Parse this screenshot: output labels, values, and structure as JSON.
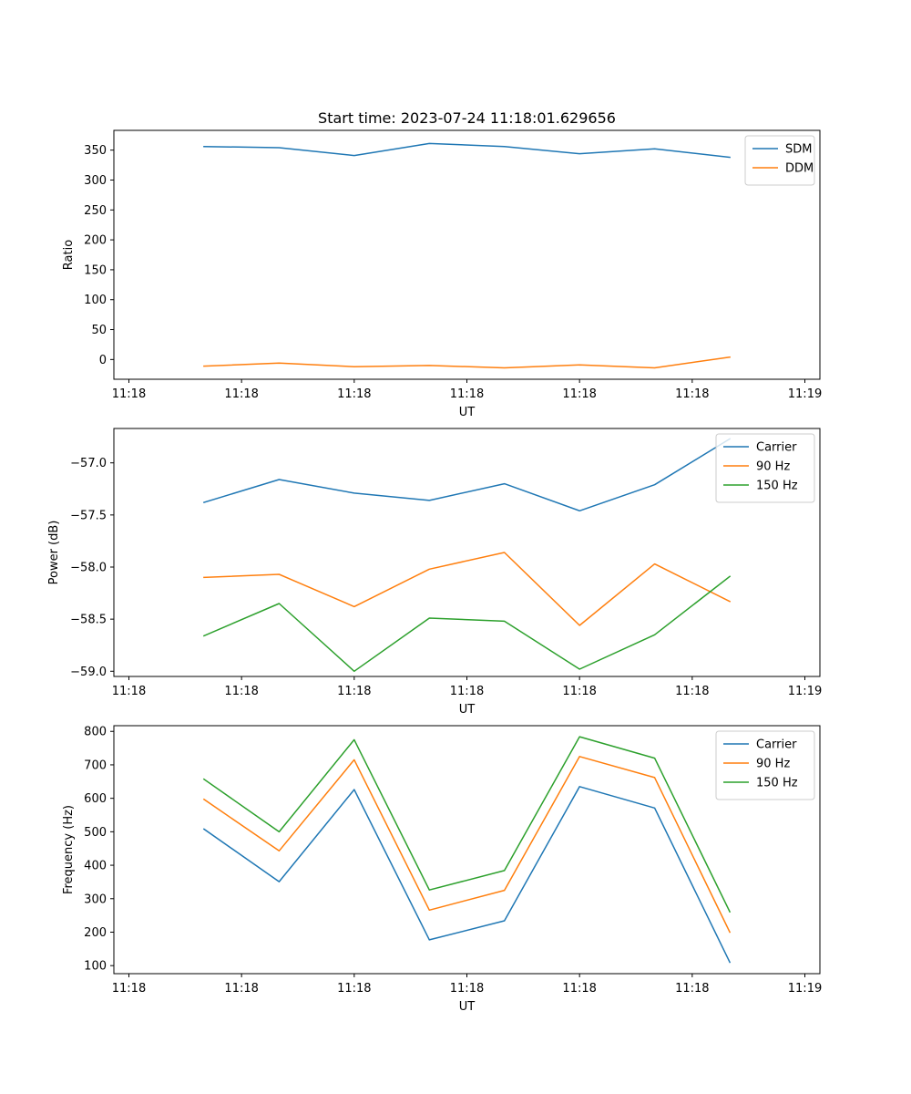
{
  "chart_data": [
    {
      "type": "line",
      "title": "Start time: 2023-07-24 11:18:01.629656",
      "xlabel": "UT",
      "ylabel": "Ratio",
      "x": [
        0.5,
        1.0,
        1.5,
        2.0,
        2.5,
        3.0,
        3.5,
        4.0
      ],
      "xlim": [
        -0.1,
        4.6
      ],
      "xticks": [
        0,
        0.75,
        1.5,
        2.25,
        3.0,
        3.75,
        4.5
      ],
      "xtick_labels": [
        "11:18",
        "11:18",
        "11:18",
        "11:18",
        "11:18",
        "11:18",
        "11:19"
      ],
      "ylim": [
        -33,
        383
      ],
      "yticks": [
        0,
        50,
        100,
        150,
        200,
        250,
        300,
        350
      ],
      "ytick_labels": [
        "0",
        "50",
        "100",
        "150",
        "200",
        "250",
        "300",
        "350"
      ],
      "legend_position": "top-right",
      "series": [
        {
          "name": "SDM",
          "color": "#1f77b4",
          "values": [
            356,
            354,
            341,
            361,
            356,
            344,
            352,
            338
          ]
        },
        {
          "name": "DDM",
          "color": "#ff7f0e",
          "values": [
            -11,
            -6,
            -12,
            -10,
            -14,
            -9,
            -14,
            4
          ]
        }
      ]
    },
    {
      "type": "line",
      "title": "",
      "xlabel": "UT",
      "ylabel": "Power (dB)",
      "x": [
        0.5,
        1.0,
        1.5,
        2.0,
        2.5,
        3.0,
        3.5,
        4.0
      ],
      "xlim": [
        -0.1,
        4.6
      ],
      "xticks": [
        0,
        0.75,
        1.5,
        2.25,
        3.0,
        3.75,
        4.5
      ],
      "xtick_labels": [
        "11:18",
        "11:18",
        "11:18",
        "11:18",
        "11:18",
        "11:18",
        "11:19"
      ],
      "ylim": [
        -59.05,
        -56.67
      ],
      "yticks": [
        -59.0,
        -58.5,
        -58.0,
        -57.5,
        -57.0
      ],
      "ytick_labels": [
        "−59.0",
        "−58.5",
        "−58.0",
        "−57.5",
        "−57.0"
      ],
      "legend_position": "top-right",
      "series": [
        {
          "name": "Carrier",
          "color": "#1f77b4",
          "values": [
            -57.38,
            -57.16,
            -57.29,
            -57.36,
            -57.2,
            -57.46,
            -57.21,
            -56.77
          ]
        },
        {
          "name": "90 Hz",
          "color": "#ff7f0e",
          "values": [
            -58.1,
            -58.07,
            -58.38,
            -58.02,
            -57.86,
            -58.56,
            -57.97,
            -58.33
          ]
        },
        {
          "name": "150 Hz",
          "color": "#2ca02c",
          "values": [
            -58.66,
            -58.35,
            -59.0,
            -58.49,
            -58.52,
            -58.98,
            -58.65,
            -58.09
          ]
        }
      ]
    },
    {
      "type": "line",
      "title": "",
      "xlabel": "UT",
      "ylabel": "Frequency (Hz)",
      "x": [
        0.5,
        1.0,
        1.5,
        2.0,
        2.5,
        3.0,
        3.5,
        4.0
      ],
      "xlim": [
        -0.1,
        4.6
      ],
      "xticks": [
        0,
        0.75,
        1.5,
        2.25,
        3.0,
        3.75,
        4.5
      ],
      "xtick_labels": [
        "11:18",
        "11:18",
        "11:18",
        "11:18",
        "11:18",
        "11:18",
        "11:19"
      ],
      "ylim": [
        76,
        817
      ],
      "yticks": [
        100,
        200,
        300,
        400,
        500,
        600,
        700,
        800
      ],
      "ytick_labels": [
        "100",
        "200",
        "300",
        "400",
        "500",
        "600",
        "700",
        "800"
      ],
      "legend_position": "top-right",
      "series": [
        {
          "name": "Carrier",
          "color": "#1f77b4",
          "values": [
            508,
            351,
            626,
            177,
            234,
            635,
            571,
            110
          ]
        },
        {
          "name": "90 Hz",
          "color": "#ff7f0e",
          "values": [
            597,
            443,
            715,
            266,
            325,
            725,
            662,
            200
          ]
        },
        {
          "name": "150 Hz",
          "color": "#2ca02c",
          "values": [
            657,
            500,
            775,
            326,
            384,
            784,
            720,
            261
          ]
        }
      ]
    }
  ]
}
